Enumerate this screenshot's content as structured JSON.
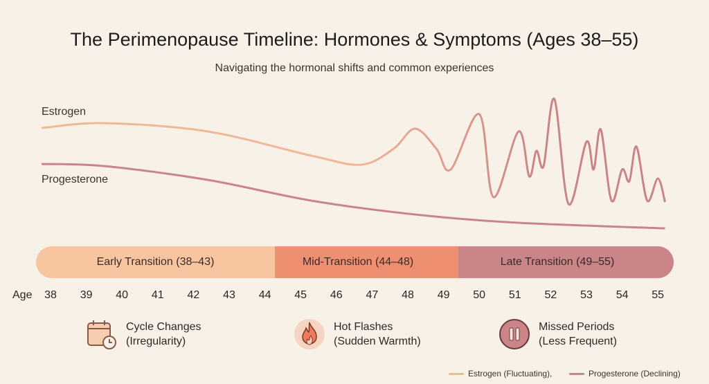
{
  "title": "The Perimenopause Timeline: Hormones & Symptoms (Ages 38–55)",
  "subtitle": "Navigating the hormonal shifts and common experiences",
  "chart_data": {
    "type": "line",
    "title": "The Perimenopause Timeline: Hormones & Symptoms (Ages 38–55)",
    "xlabel": "Age",
    "xlim": [
      38,
      55
    ],
    "x_ticks": [
      "38",
      "39",
      "40",
      "41",
      "42",
      "43",
      "44",
      "45",
      "46",
      "47",
      "48",
      "49",
      "50",
      "51",
      "52",
      "53",
      "54",
      "55"
    ],
    "y_axis_shown": false,
    "grid": false,
    "legend_placement": "bottom-right",
    "series": [
      {
        "name": "Estrogen",
        "legend": "Estrogen (Fluctuating),",
        "color": "#f0b896",
        "color_late": "#c98585",
        "points": [
          [
            37.75,
            72.5
          ],
          [
            39.5,
            76
          ],
          [
            42.4,
            70
          ],
          [
            45.3,
            52.5
          ],
          [
            46.7,
            46
          ],
          [
            47.6,
            57.5
          ],
          [
            48.2,
            72
          ],
          [
            48.8,
            57.5
          ],
          [
            49.2,
            42.5
          ],
          [
            50.0,
            82.5
          ],
          [
            50.4,
            22.5
          ],
          [
            51.1,
            70
          ],
          [
            51.4,
            37.5
          ],
          [
            51.6,
            56
          ],
          [
            51.8,
            45
          ],
          [
            52.1,
            93.5
          ],
          [
            52.5,
            17.5
          ],
          [
            53.0,
            62.5
          ],
          [
            53.2,
            42.5
          ],
          [
            53.4,
            71.5
          ],
          [
            53.7,
            20
          ],
          [
            54.0,
            42.5
          ],
          [
            54.2,
            34
          ],
          [
            54.4,
            59
          ],
          [
            54.7,
            20
          ],
          [
            55.0,
            36
          ],
          [
            55.2,
            19
          ]
        ]
      },
      {
        "name": "Progesterone",
        "legend": "Progesterone (Declining)",
        "color": "#c9858a",
        "points": [
          [
            37.75,
            46.5
          ],
          [
            39.5,
            45
          ],
          [
            42.4,
            35
          ],
          [
            45.3,
            20
          ],
          [
            48.2,
            10
          ],
          [
            51.1,
            4
          ],
          [
            55.2,
            0
          ]
        ]
      }
    ]
  },
  "phases": [
    {
      "label": "Early Transition (38–43)",
      "color": "#f7c6a0"
    },
    {
      "label": "Mid-Transition (44–48)",
      "color": "#ee8f72"
    },
    {
      "label": "Late Transition (49–55)",
      "color": "#c98588"
    }
  ],
  "symptoms": [
    {
      "icon": "calendar-clock-icon",
      "line1": "Cycle Changes",
      "line2": "(Irregularity)"
    },
    {
      "icon": "flame-icon",
      "line1": "Hot Flashes",
      "line2": "(Sudden Warmth)"
    },
    {
      "icon": "pause-icon",
      "line1": "Missed Periods",
      "line2": "(Less Frequent)"
    }
  ]
}
